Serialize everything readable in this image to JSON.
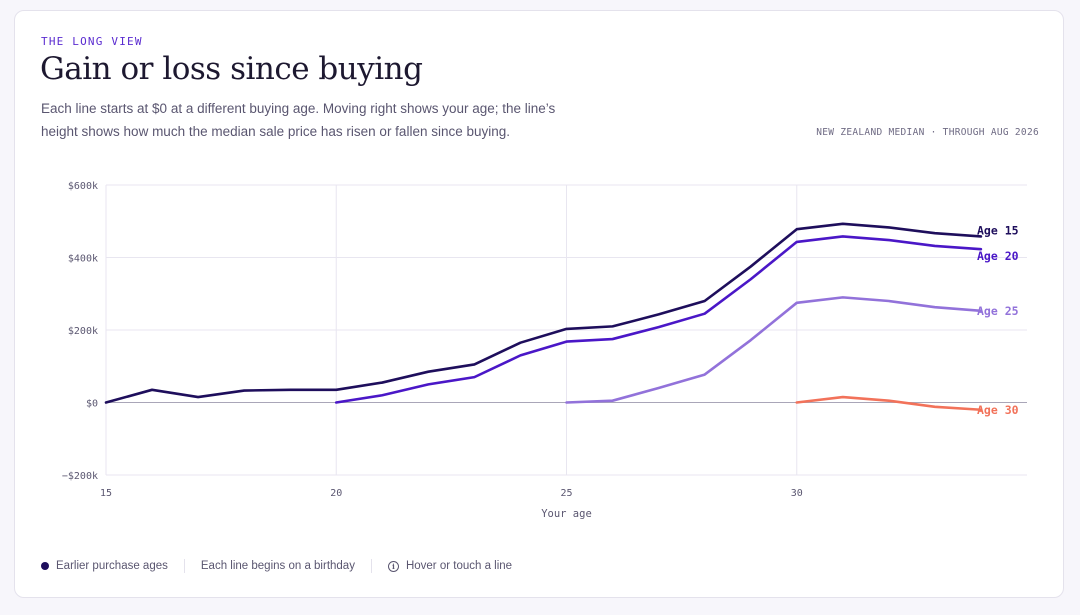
{
  "header": {
    "eyebrow": "THE LONG VIEW",
    "title": "Gain or loss since buying",
    "subtitle": "Each line starts at $0 at a different buying age. Moving right shows your age; the line’s height shows how much the median sale price has risen or fallen since buying.",
    "source": "NEW ZEALAND MEDIAN · THROUGH AUG 2026"
  },
  "footer": {
    "legend_label": "Earlier purchase ages",
    "note": "Each line begins on a birthday",
    "hint": "Hover or touch a line",
    "hint_icon": "info-icon"
  },
  "chart_data": {
    "type": "line",
    "xlabel": "Your age",
    "ylabel": "",
    "xlim": [
      15,
      35
    ],
    "ylim": [
      -200000,
      600000
    ],
    "x_ticks": [
      15,
      20,
      25,
      30
    ],
    "y_ticks": [
      -200000,
      0,
      200000,
      400000,
      600000
    ],
    "y_tick_labels": [
      "−$200k",
      "$0",
      "$200k",
      "$400k",
      "$600k"
    ],
    "grid": true,
    "zero_line": true,
    "series": [
      {
        "name": "Age 15",
        "color": "#1e0e5c",
        "x": [
          15,
          16,
          17,
          18,
          19,
          20,
          21,
          22,
          23,
          24,
          25,
          26,
          27,
          28,
          29,
          30,
          31,
          32,
          33,
          34
        ],
        "y": [
          0,
          35000,
          15000,
          33000,
          35000,
          35000,
          55000,
          85000,
          105000,
          165000,
          203000,
          210000,
          243000,
          280000,
          375000,
          478000,
          493000,
          483000,
          467000,
          458000
        ]
      },
      {
        "name": "Age 20",
        "color": "#4a17c7",
        "x": [
          20,
          21,
          22,
          23,
          24,
          25,
          26,
          27,
          28,
          29,
          30,
          31,
          32,
          33,
          34
        ],
        "y": [
          0,
          20000,
          50000,
          70000,
          130000,
          168000,
          175000,
          208000,
          245000,
          340000,
          443000,
          458000,
          448000,
          432000,
          423000
        ]
      },
      {
        "name": "Age 25",
        "color": "#9272da",
        "x": [
          25,
          26,
          27,
          28,
          29,
          30,
          31,
          32,
          33,
          34
        ],
        "y": [
          0,
          5000,
          40000,
          77000,
          172000,
          275000,
          290000,
          280000,
          263000,
          253000
        ]
      },
      {
        "name": "Age 30",
        "color": "#f2725a",
        "x": [
          30,
          31,
          32,
          33,
          34
        ],
        "y": [
          0,
          15000,
          5000,
          -12000,
          -20000
        ]
      }
    ]
  }
}
